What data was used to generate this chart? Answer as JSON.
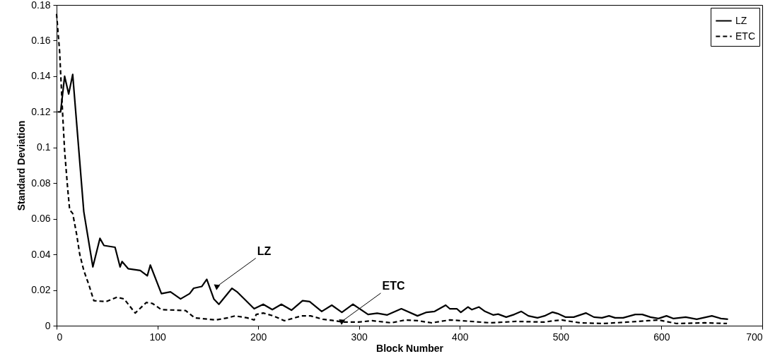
{
  "chart_data": {
    "type": "line",
    "xlabel": "Block Number",
    "ylabel": "Standard Deviation",
    "xlim": [
      0,
      700
    ],
    "xticks": [
      0,
      100,
      200,
      300,
      400,
      500,
      600,
      700
    ],
    "ylim": [
      0,
      0.18
    ],
    "yticks": [
      0,
      0.02,
      0.04,
      0.06,
      0.08,
      0.1,
      0.12,
      0.14,
      0.16,
      0.18
    ],
    "grid": false,
    "legend": "top right",
    "marker": "none",
    "series": [
      {
        "name": "LZ",
        "color": "#000000",
        "line_style": "solid",
        "x": [
          1,
          4,
          8,
          12,
          16,
          27,
          36,
          43,
          47,
          58,
          63,
          65,
          71,
          83,
          90,
          93,
          104,
          113,
          123,
          132,
          136,
          144,
          149,
          156,
          161,
          174,
          179,
          196,
          205,
          214,
          223,
          233,
          244,
          251,
          263,
          273,
          283,
          294,
          309,
          318,
          328,
          342,
          358,
          367,
          375,
          386,
          390,
          397,
          401,
          408,
          412,
          419,
          425,
          433,
          438,
          446,
          454,
          461,
          468,
          477,
          484,
          492,
          497,
          505,
          513,
          525,
          533,
          541,
          548,
          554,
          562,
          574,
          581,
          589,
          597,
          605,
          612,
          624,
          635,
          650,
          659,
          666
        ],
        "values": [
          0.12,
          0.12,
          0.14,
          0.13,
          0.141,
          0.064,
          0.033,
          0.049,
          0.045,
          0.044,
          0.033,
          0.036,
          0.032,
          0.031,
          0.028,
          0.034,
          0.018,
          0.019,
          0.015,
          0.018,
          0.021,
          0.022,
          0.026,
          0.015,
          0.012,
          0.021,
          0.019,
          0.0095,
          0.012,
          0.009,
          0.012,
          0.0087,
          0.014,
          0.0135,
          0.008,
          0.0115,
          0.0075,
          0.012,
          0.0063,
          0.007,
          0.006,
          0.0095,
          0.0055,
          0.0075,
          0.008,
          0.0115,
          0.0095,
          0.0095,
          0.0075,
          0.0105,
          0.009,
          0.0105,
          0.008,
          0.006,
          0.0065,
          0.0048,
          0.0063,
          0.008,
          0.0055,
          0.0044,
          0.0055,
          0.0076,
          0.0068,
          0.0048,
          0.0048,
          0.0071,
          0.0048,
          0.0044,
          0.0055,
          0.0044,
          0.0044,
          0.0063,
          0.0063,
          0.0048,
          0.004,
          0.0055,
          0.004,
          0.0048,
          0.0036,
          0.0055,
          0.004,
          0.0036
        ]
      },
      {
        "name": "ETC",
        "color": "#000000",
        "line_style": "dashed",
        "x": [
          0,
          3,
          6,
          8,
          11,
          13,
          16,
          20,
          23,
          27,
          32,
          37,
          49,
          60,
          67,
          78,
          89,
          95,
          104,
          128,
          137,
          158,
          170,
          177,
          189,
          196,
          198,
          205,
          215,
          226,
          243,
          252,
          264,
          273,
          285,
          299,
          313,
          332,
          346,
          358,
          372,
          390,
          402,
          430,
          456,
          484,
          493,
          501,
          519,
          542,
          566,
          587,
          597,
          615,
          643,
          665
        ],
        "values": [
          0.175,
          0.154,
          0.119,
          0.098,
          0.077,
          0.065,
          0.063,
          0.051,
          0.04,
          0.031,
          0.023,
          0.014,
          0.0135,
          0.016,
          0.015,
          0.0071,
          0.013,
          0.0125,
          0.009,
          0.0085,
          0.0044,
          0.0032,
          0.0044,
          0.0055,
          0.0044,
          0.0032,
          0.0063,
          0.0071,
          0.0055,
          0.0028,
          0.0055,
          0.0055,
          0.0036,
          0.003,
          0.002,
          0.002,
          0.0028,
          0.0016,
          0.0032,
          0.0028,
          0.0016,
          0.0032,
          0.0028,
          0.0016,
          0.0024,
          0.002,
          0.0028,
          0.0032,
          0.0016,
          0.0012,
          0.002,
          0.0028,
          0.0032,
          0.0012,
          0.0016,
          0.0012
        ]
      }
    ],
    "annotations": [
      {
        "text": "LZ",
        "x": 159,
        "y": 0.022
      },
      {
        "text": "ETC",
        "x": 283,
        "y": 0.0024
      }
    ]
  }
}
